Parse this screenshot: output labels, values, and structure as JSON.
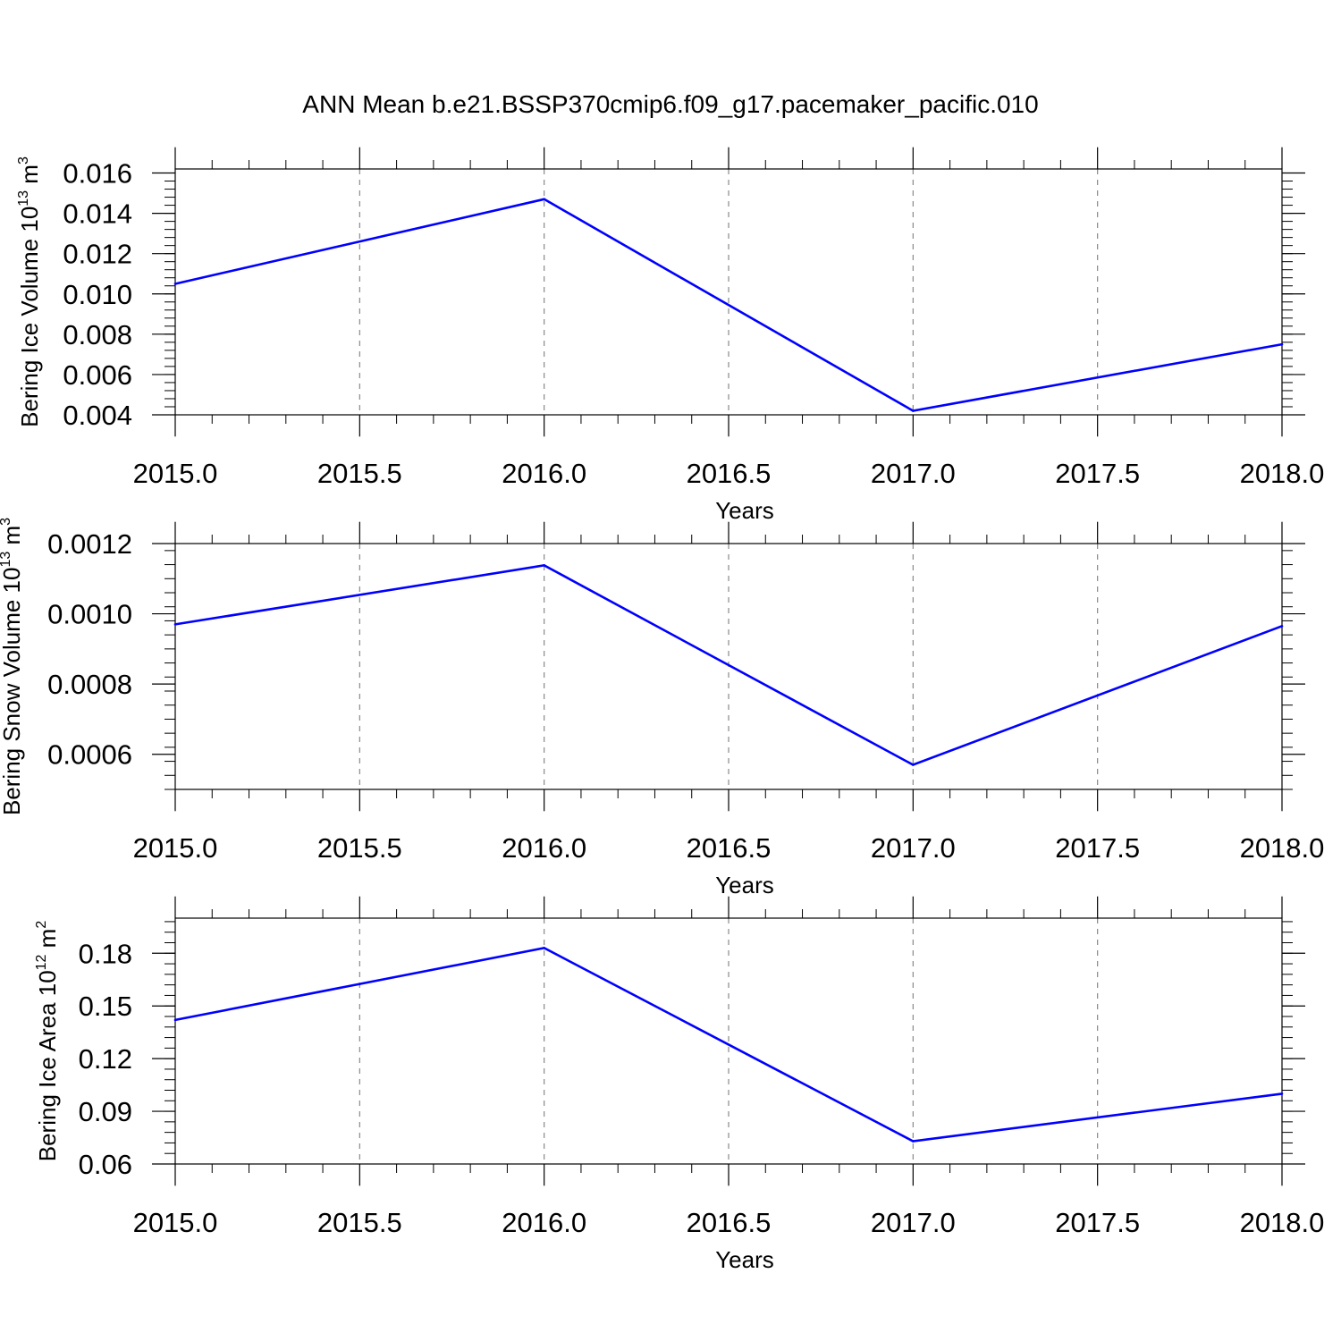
{
  "figure_title": "ANN Mean b.e21.BSSP370cmip6.f09_g17.pacemaker_pacific.010",
  "chart_data": [
    {
      "type": "line",
      "title": "",
      "xlabel": "Years",
      "ylabel": "Bering Ice Volume 10",
      "ylabel_exponent": "13",
      "ylabel_unit": " m",
      "ylabel_unit_exponent": "3",
      "xlim": [
        2015.0,
        2018.0
      ],
      "ylim": [
        0.004,
        0.0162
      ],
      "x_ticks": [
        2015.0,
        2015.5,
        2016.0,
        2016.5,
        2017.0,
        2017.5,
        2018.0
      ],
      "x_tick_labels": [
        "2015.0",
        "2015.5",
        "2016.0",
        "2016.5",
        "2017.0",
        "2017.5",
        "2018.0"
      ],
      "y_ticks": [
        0.004,
        0.006,
        0.008,
        0.01,
        0.012,
        0.014,
        0.016
      ],
      "y_tick_labels": [
        "0.004",
        "0.006",
        "0.008",
        "0.010",
        "0.012",
        "0.014",
        "0.016"
      ],
      "y_minor_step": 0.0004,
      "grid": "vertical dashed at major x ticks",
      "series": [
        {
          "color": "#0000ff",
          "x": [
            2015,
            2016,
            2017,
            2018
          ],
          "values": [
            0.0105,
            0.0147,
            0.0042,
            0.0075
          ]
        }
      ]
    },
    {
      "type": "line",
      "title": "",
      "xlabel": "Years",
      "ylabel": "Bering Snow Volume 10",
      "ylabel_exponent": "13",
      "ylabel_unit": " m",
      "ylabel_unit_exponent": "3",
      "xlim": [
        2015.0,
        2018.0
      ],
      "ylim": [
        0.0005,
        0.0012
      ],
      "x_ticks": [
        2015.0,
        2015.5,
        2016.0,
        2016.5,
        2017.0,
        2017.5,
        2018.0
      ],
      "x_tick_labels": [
        "2015.0",
        "2015.5",
        "2016.0",
        "2016.5",
        "2017.0",
        "2017.5",
        "2018.0"
      ],
      "y_ticks": [
        0.0006,
        0.0008,
        0.001,
        0.0012
      ],
      "y_tick_labels": [
        "0.0006",
        "0.0008",
        "0.0010",
        "0.0012"
      ],
      "y_minor_step": 4e-05,
      "grid": "vertical dashed at major x ticks",
      "series": [
        {
          "color": "#0000ff",
          "x": [
            2015,
            2016,
            2017,
            2018
          ],
          "values": [
            0.00097,
            0.001138,
            0.00057,
            0.000965
          ]
        }
      ]
    },
    {
      "type": "line",
      "title": "",
      "xlabel": "Years",
      "ylabel": "Bering Ice Area 10",
      "ylabel_exponent": "12",
      "ylabel_unit": " m",
      "ylabel_unit_exponent": "2",
      "xlim": [
        2015.0,
        2018.0
      ],
      "ylim": [
        0.06,
        0.2
      ],
      "x_ticks": [
        2015.0,
        2015.5,
        2016.0,
        2016.5,
        2017.0,
        2017.5,
        2018.0
      ],
      "x_tick_labels": [
        "2015.0",
        "2015.5",
        "2016.0",
        "2016.5",
        "2017.0",
        "2017.5",
        "2018.0"
      ],
      "y_ticks": [
        0.06,
        0.09,
        0.12,
        0.15,
        0.18
      ],
      "y_tick_labels": [
        "0.06",
        "0.09",
        "0.12",
        "0.15",
        "0.18"
      ],
      "y_minor_step": 0.006,
      "grid": "vertical dashed at major x ticks",
      "series": [
        {
          "color": "#0000ff",
          "x": [
            2015,
            2016,
            2017,
            2018
          ],
          "values": [
            0.142,
            0.183,
            0.073,
            0.1
          ]
        }
      ]
    }
  ]
}
